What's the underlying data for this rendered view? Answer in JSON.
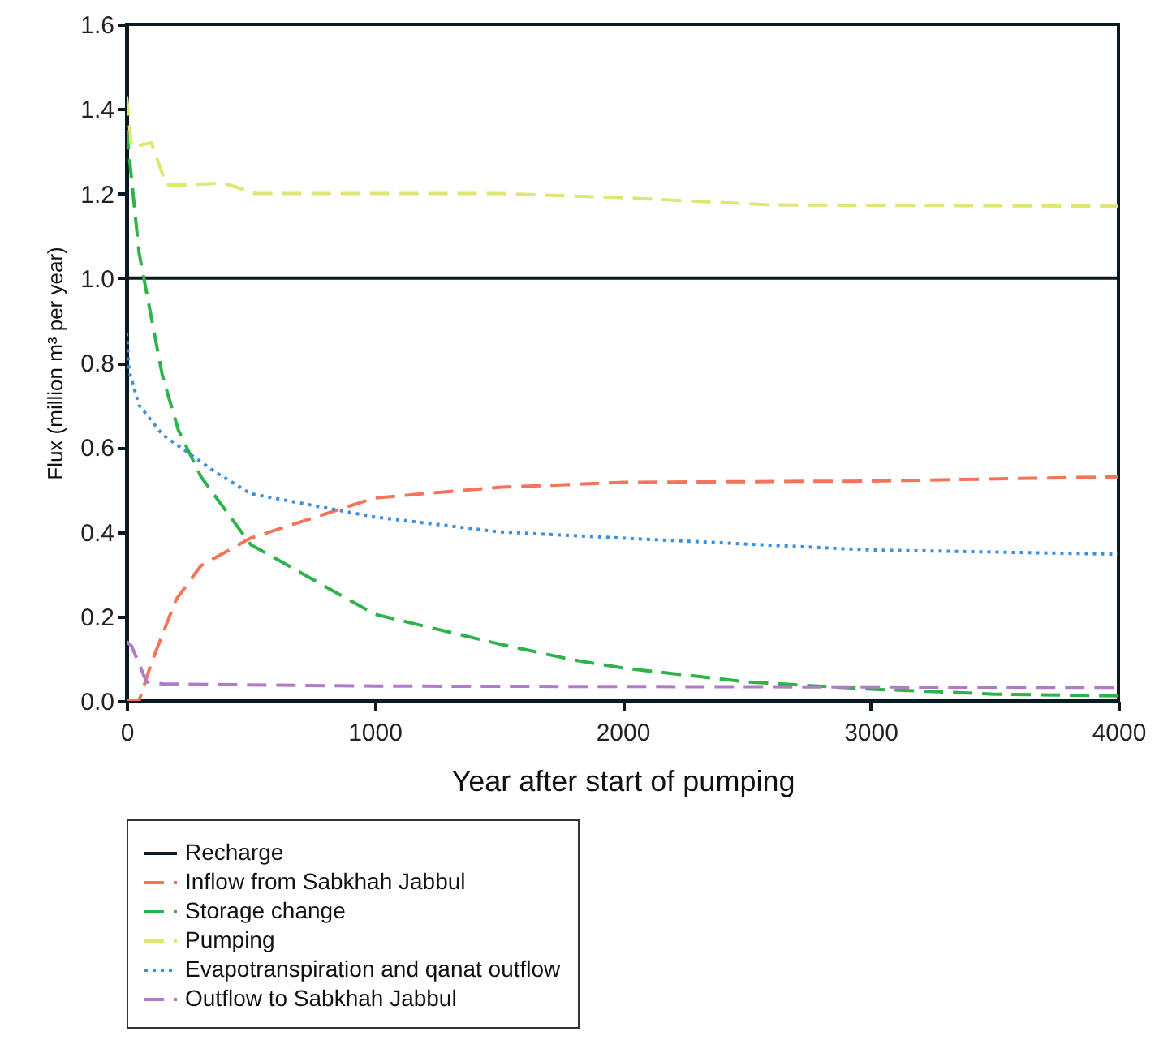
{
  "chart_data": {
    "type": "line",
    "xlabel": "Year after start of pumping",
    "ylabel": "Flux (million m³ per year)",
    "xlim": [
      0,
      4000
    ],
    "xticks": [
      0,
      1000,
      2000,
      3000,
      4000
    ],
    "ylim": [
      0,
      1.6
    ],
    "yticks": [
      {
        "value": 0,
        "label": "0.0"
      },
      0.2,
      0.4,
      0.6,
      0.8,
      {
        "value": 1,
        "label": "1.0"
      },
      1.2,
      1.4,
      1.6
    ],
    "grid": false,
    "legend": "bottom",
    "series": [
      {
        "name": "Recharge",
        "color": "#0a1a22",
        "line_style": "solid",
        "x": [
          0,
          4000
        ],
        "values": [
          1.0,
          1.0
        ]
      },
      {
        "name": "Inflow from Sabkhah Jabbul",
        "color": "#f4745a",
        "line_style": "dashed",
        "x": [
          0,
          50,
          100,
          200,
          300,
          500,
          1000,
          1500,
          2000,
          3000,
          4000
        ],
        "values": [
          0,
          0,
          0.09,
          0.24,
          0.32,
          0.385,
          0.48,
          0.505,
          0.517,
          0.52,
          0.53
        ]
      },
      {
        "name": "Storage change",
        "color": "#2db34a",
        "line_style": "dashed",
        "x": [
          0,
          50,
          144,
          209,
          300,
          500,
          1000,
          1500,
          1800,
          2000,
          2500,
          3000,
          3500,
          4000
        ],
        "values": [
          1.35,
          1.06,
          0.77,
          0.64,
          0.53,
          0.37,
          0.205,
          0.135,
          0.097,
          0.078,
          0.045,
          0.028,
          0.016,
          0.012
        ]
      },
      {
        "name": "Pumping",
        "color": "#dfe672",
        "line_style": "dashed",
        "x": [
          0,
          20,
          100,
          160,
          240,
          390,
          520,
          1000,
          1500,
          2000,
          2600,
          4000
        ],
        "values": [
          1.43,
          1.31,
          1.32,
          1.22,
          1.22,
          1.225,
          1.2,
          1.2,
          1.2,
          1.19,
          1.173,
          1.17
        ]
      },
      {
        "name": "Evapotranspiration and qanat outflow",
        "color": "#3a8fe0",
        "line_style": "dotted",
        "x": [
          0,
          10,
          50,
          144,
          361,
          500,
          1000,
          1500,
          2000,
          3000,
          4000
        ],
        "values": [
          0.87,
          0.78,
          0.7,
          0.63,
          0.54,
          0.49,
          0.435,
          0.4,
          0.385,
          0.357,
          0.347
        ]
      },
      {
        "name": "Outflow to Sabkhah Jabbul",
        "color": "#b07cc8",
        "line_style": "dashed",
        "x": [
          0,
          20,
          80,
          150,
          1000,
          4000
        ],
        "values": [
          0.14,
          0.13,
          0.045,
          0.04,
          0.035,
          0.032
        ]
      }
    ]
  }
}
